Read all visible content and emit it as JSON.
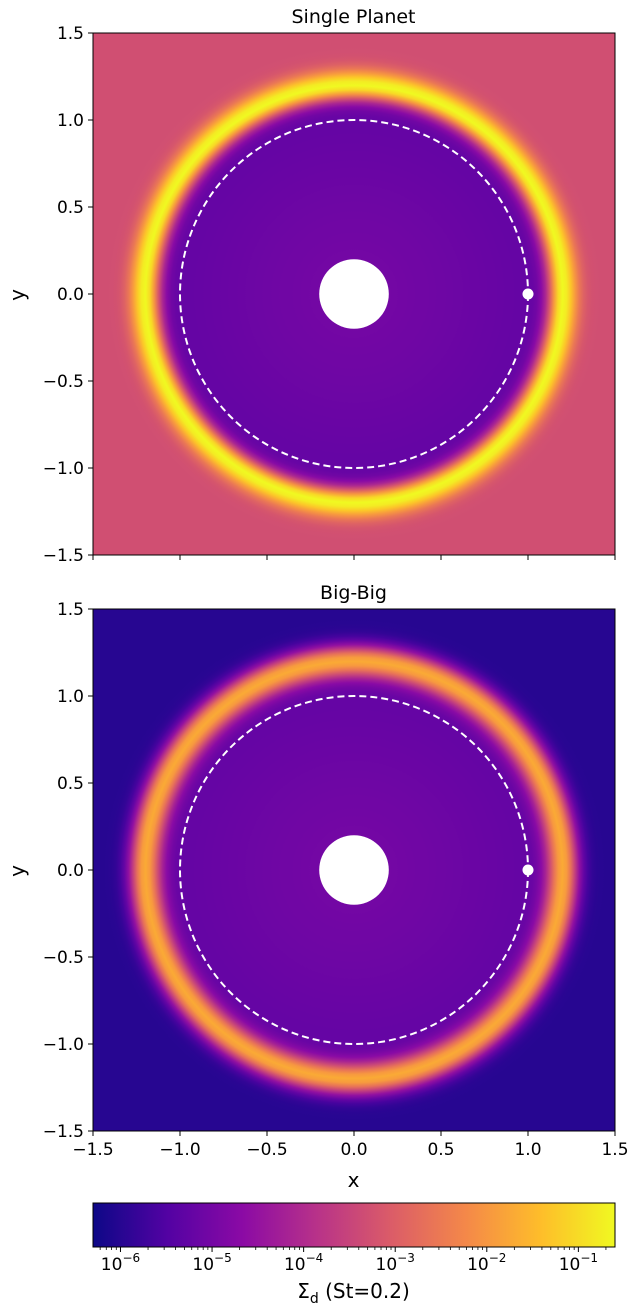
{
  "chart_data": [
    {
      "type": "heatmap",
      "title": "Single Planet",
      "xlabel": "",
      "ylabel": "y",
      "xlim": [
        -1.5,
        1.5
      ],
      "ylim": [
        -1.5,
        1.5
      ],
      "xticks": [
        -1.5,
        -1.0,
        -0.5,
        0.0,
        0.5,
        1.0,
        1.5
      ],
      "yticks": [
        -1.5,
        -1.0,
        -0.5,
        0.0,
        0.5,
        1.0,
        1.5
      ],
      "xtick_labels_shown": false,
      "background_log10_sigma": -3.3,
      "inner_cavity_log10_sigma": -5.3,
      "ring": {
        "radius": 1.2,
        "width": 0.06,
        "peak_log10_sigma": -0.6
      },
      "inner_hole_radius": 0.2,
      "planet_orbit_radius": 1.0,
      "planet": {
        "x": 1.0,
        "y": 0.0
      }
    },
    {
      "type": "heatmap",
      "title": "Big-Big",
      "xlabel": "x",
      "ylabel": "y",
      "xlim": [
        -1.5,
        1.5
      ],
      "ylim": [
        -1.5,
        1.5
      ],
      "xticks": [
        -1.5,
        -1.0,
        -0.5,
        0.0,
        0.5,
        1.0,
        1.5
      ],
      "yticks": [
        -1.5,
        -1.0,
        -0.5,
        0.0,
        0.5,
        1.0,
        1.5
      ],
      "xtick_labels_shown": true,
      "background_log10_sigma": -6.0,
      "inner_cavity_log10_sigma": -5.3,
      "ring": {
        "radius": 1.2,
        "width": 0.065,
        "peak_log10_sigma": -1.7
      },
      "inner_hole_radius": 0.2,
      "planet_orbit_radius": 1.0,
      "planet": {
        "x": 1.0,
        "y": 0.0
      }
    }
  ],
  "colorbar": {
    "label": "Σd (St=0.2)",
    "label_main": "Σ",
    "label_sub": "d",
    "label_rest": " (St=0.2)",
    "scale": "log",
    "range_log10": [
      -6.3,
      -0.6
    ],
    "tick_exponents": [
      -6,
      -5,
      -4,
      -3,
      -2,
      -1
    ],
    "tick_base": "10",
    "colormap": "plasma",
    "colors": [
      "#0d0887",
      "#5302a3",
      "#8b0aa5",
      "#b83289",
      "#db5c68",
      "#f48849",
      "#febd2a",
      "#f0f921"
    ]
  }
}
